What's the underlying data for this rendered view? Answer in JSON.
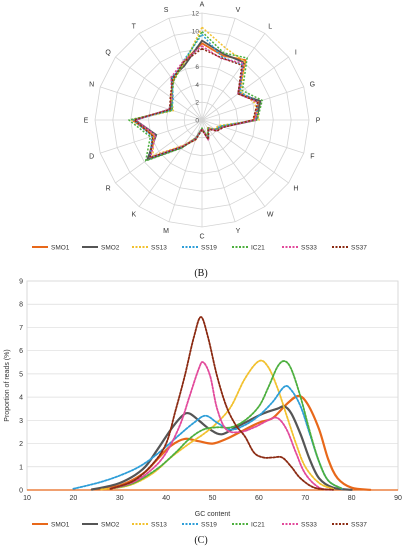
{
  "figure": {
    "panel_b_label": "(B)",
    "panel_c_label": "(C)"
  },
  "chart_data": [
    {
      "type": "radar",
      "panel": "(B)",
      "axes": [
        "A",
        "V",
        "L",
        "I",
        "G",
        "P",
        "F",
        "H",
        "W",
        "Y",
        "C",
        "M",
        "K",
        "R",
        "D",
        "E",
        "N",
        "Q",
        "T",
        "S"
      ],
      "ticks": [
        0,
        2,
        4,
        6,
        8,
        10,
        12
      ],
      "rlim": [
        0,
        12
      ],
      "grid": true,
      "legend": "bottom",
      "series": [
        {
          "name": "SMO1",
          "color": "#e8681a",
          "dash": "solid",
          "values": [
            8.6,
            7.6,
            8.3,
            5.1,
            6.8,
            5.8,
            2.4,
            1.8,
            1.2,
            2.1,
            1.0,
            2.3,
            3.6,
            7.4,
            5.7,
            7.8,
            3.7,
            4.3,
            5.5,
            6.8
          ]
        },
        {
          "name": "SMO2",
          "color": "#555555",
          "dash": "solid",
          "values": [
            8.9,
            7.8,
            8.0,
            5.0,
            6.9,
            6.1,
            2.5,
            2.0,
            1.1,
            2.3,
            1.0,
            2.1,
            3.8,
            7.6,
            5.4,
            7.5,
            3.8,
            4.1,
            5.8,
            6.4
          ]
        },
        {
          "name": "SS13",
          "color": "#f2c12e",
          "dash": "dotted",
          "values": [
            10.4,
            8.5,
            8.1,
            5.4,
            6.2,
            6.4,
            2.0,
            1.7,
            1.1,
            2.0,
            1.0,
            2.1,
            3.5,
            6.8,
            5.7,
            7.9,
            3.4,
            4.2,
            5.6,
            6.6
          ]
        },
        {
          "name": "SS19",
          "color": "#2e9ed8",
          "dash": "dotted",
          "values": [
            9.6,
            7.4,
            7.7,
            5.3,
            6.6,
            6.0,
            2.2,
            1.8,
            1.2,
            2.2,
            1.0,
            2.2,
            3.7,
            7.2,
            5.9,
            7.7,
            3.6,
            4.0,
            5.7,
            6.9
          ]
        },
        {
          "name": "IC21",
          "color": "#4caf3e",
          "dash": "dotted",
          "values": [
            9.9,
            7.9,
            8.6,
            5.6,
            7.1,
            6.2,
            2.3,
            1.9,
            1.2,
            2.0,
            0.9,
            2.1,
            3.9,
            7.8,
            6.1,
            8.2,
            3.5,
            4.2,
            5.4,
            6.7
          ]
        },
        {
          "name": "SS33",
          "color": "#e24a9b",
          "dash": "dotted",
          "values": [
            8.3,
            7.2,
            7.9,
            5.0,
            6.5,
            6.0,
            2.5,
            2.0,
            1.2,
            2.4,
            1.0,
            2.2,
            3.6,
            7.1,
            5.5,
            7.4,
            3.9,
            4.2,
            5.9,
            6.9
          ]
        },
        {
          "name": "SS37",
          "color": "#8b2a12",
          "dash": "dotted",
          "values": [
            8.0,
            7.3,
            7.6,
            5.0,
            6.6,
            5.7,
            2.6,
            2.1,
            1.3,
            2.3,
            1.1,
            2.3,
            3.7,
            7.2,
            5.8,
            7.6,
            3.8,
            4.4,
            5.6,
            6.8
          ]
        }
      ]
    },
    {
      "type": "line",
      "panel": "(C)",
      "xlabel": "GC content",
      "ylabel": "Proportion of reads (%)",
      "xlim": [
        10,
        90
      ],
      "ylim": [
        0,
        9
      ],
      "xticks": [
        10,
        20,
        30,
        40,
        50,
        60,
        70,
        80,
        90
      ],
      "yticks": [
        0,
        1,
        2,
        3,
        4,
        5,
        6,
        7,
        8,
        9
      ],
      "grid": true,
      "legend": "bottom",
      "series": [
        {
          "name": "SMO1",
          "color": "#e8681a",
          "dash": "solid",
          "width": 2.2,
          "points": [
            [
              24,
              0.02
            ],
            [
              30,
              0.2
            ],
            [
              35,
              0.7
            ],
            [
              38,
              1.3
            ],
            [
              41,
              1.9
            ],
            [
              44,
              2.2
            ],
            [
              47,
              2.1
            ],
            [
              50,
              2.0
            ],
            [
              53,
              2.2
            ],
            [
              56,
              2.5
            ],
            [
              60,
              2.9
            ],
            [
              63,
              3.1
            ],
            [
              66,
              3.7
            ],
            [
              68.5,
              4.05
            ],
            [
              70.5,
              3.7
            ],
            [
              73,
              2.6
            ],
            [
              75,
              1.3
            ],
            [
              77,
              0.5
            ],
            [
              80,
              0.1
            ],
            [
              84,
              0.01
            ]
          ]
        },
        {
          "name": "SMO2",
          "color": "#555555",
          "dash": "solid",
          "width": 2.2,
          "points": [
            [
              24,
              0.02
            ],
            [
              30,
              0.3
            ],
            [
              35,
              0.9
            ],
            [
              38,
              1.7
            ],
            [
              41,
              2.6
            ],
            [
              43.5,
              3.2
            ],
            [
              45,
              3.3
            ],
            [
              47,
              3.0
            ],
            [
              49.5,
              2.6
            ],
            [
              52,
              2.4
            ],
            [
              55,
              2.7
            ],
            [
              58,
              3.0
            ],
            [
              61,
              3.3
            ],
            [
              64,
              3.5
            ],
            [
              65.5,
              3.6
            ],
            [
              67,
              3.3
            ],
            [
              69,
              2.4
            ],
            [
              71,
              1.3
            ],
            [
              73,
              0.5
            ],
            [
              76,
              0.1
            ],
            [
              80,
              0.01
            ]
          ]
        },
        {
          "name": "SS13",
          "color": "#f2c12e",
          "dash": "dotted",
          "width": 1.8,
          "points": [
            [
              26,
              0.02
            ],
            [
              32,
              0.2
            ],
            [
              37,
              0.7
            ],
            [
              41,
              1.4
            ],
            [
              45,
              2.0
            ],
            [
              48,
              2.4
            ],
            [
              51,
              2.9
            ],
            [
              54,
              3.6
            ],
            [
              57,
              4.8
            ],
            [
              60,
              5.55
            ],
            [
              62,
              5.3
            ],
            [
              64,
              4.4
            ],
            [
              66,
              3.2
            ],
            [
              68,
              2.0
            ],
            [
              70,
              1.0
            ],
            [
              73,
              0.3
            ],
            [
              76,
              0.05
            ]
          ]
        },
        {
          "name": "SS19",
          "color": "#2e9ed8",
          "dash": "dotted",
          "width": 1.8,
          "points": [
            [
              20,
              0.05
            ],
            [
              26,
              0.35
            ],
            [
              31,
              0.7
            ],
            [
              35,
              1.1
            ],
            [
              39,
              1.7
            ],
            [
              43,
              2.4
            ],
            [
              46,
              2.9
            ],
            [
              48.5,
              3.2
            ],
            [
              51,
              2.9
            ],
            [
              54,
              2.6
            ],
            [
              57,
              2.8
            ],
            [
              60,
              3.2
            ],
            [
              63,
              3.8
            ],
            [
              65.5,
              4.45
            ],
            [
              67,
              4.3
            ],
            [
              69,
              3.6
            ],
            [
              71,
              2.4
            ],
            [
              73,
              1.2
            ],
            [
              75,
              0.4
            ],
            [
              78,
              0.05
            ]
          ]
        },
        {
          "name": "IC21",
          "color": "#4caf3e",
          "dash": "dotted",
          "width": 1.8,
          "points": [
            [
              28,
              0.05
            ],
            [
              33,
              0.3
            ],
            [
              38,
              0.9
            ],
            [
              42,
              1.6
            ],
            [
              45,
              2.2
            ],
            [
              48,
              2.6
            ],
            [
              51,
              2.7
            ],
            [
              54,
              2.7
            ],
            [
              57,
              3.0
            ],
            [
              60,
              3.6
            ],
            [
              62,
              4.4
            ],
            [
              64,
              5.3
            ],
            [
              65.5,
              5.55
            ],
            [
              67,
              5.2
            ],
            [
              69,
              4.0
            ],
            [
              71,
              2.5
            ],
            [
              73,
              1.2
            ],
            [
              75,
              0.4
            ],
            [
              78,
              0.05
            ]
          ]
        },
        {
          "name": "SS33",
          "color": "#e24a9b",
          "dash": "dotted",
          "width": 1.8,
          "points": [
            [
              28,
              0.05
            ],
            [
              33,
              0.35
            ],
            [
              37,
              0.9
            ],
            [
              40,
              1.6
            ],
            [
              43,
              2.8
            ],
            [
              45,
              4.0
            ],
            [
              47,
              5.2
            ],
            [
              48,
              5.5
            ],
            [
              49.5,
              4.9
            ],
            [
              51,
              3.5
            ],
            [
              53,
              2.6
            ],
            [
              56,
              2.5
            ],
            [
              59,
              2.7
            ],
            [
              62,
              3.0
            ],
            [
              64,
              3.1
            ],
            [
              66,
              2.6
            ],
            [
              68,
              1.6
            ],
            [
              70,
              0.7
            ],
            [
              73,
              0.1
            ],
            [
              76,
              0.01
            ]
          ]
        },
        {
          "name": "SS37",
          "color": "#8b2a12",
          "dash": "dotted",
          "width": 1.8,
          "points": [
            [
              28,
              0.05
            ],
            [
              33,
              0.4
            ],
            [
              37,
              1.1
            ],
            [
              40,
              2.0
            ],
            [
              42,
              3.4
            ],
            [
              44,
              4.9
            ],
            [
              46,
              6.6
            ],
            [
              47.5,
              7.45
            ],
            [
              49,
              6.6
            ],
            [
              51,
              4.9
            ],
            [
              53,
              3.6
            ],
            [
              55,
              2.8
            ],
            [
              57,
              2.3
            ],
            [
              59,
              1.6
            ],
            [
              61,
              1.4
            ],
            [
              63,
              1.4
            ],
            [
              65,
              1.4
            ],
            [
              67,
              1.0
            ],
            [
              69,
              0.5
            ],
            [
              72,
              0.1
            ],
            [
              76,
              0.01
            ]
          ]
        }
      ]
    }
  ]
}
